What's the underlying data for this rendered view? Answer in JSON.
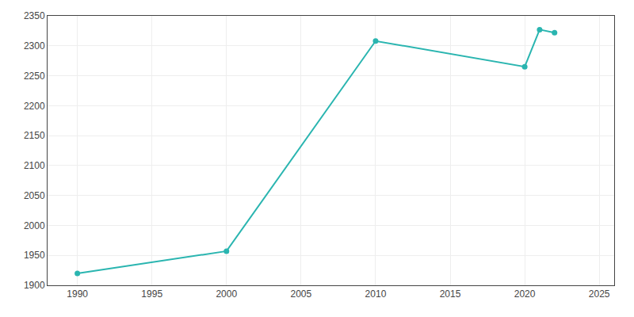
{
  "chart_data": {
    "type": "line",
    "x": [
      1990,
      2000,
      2010,
      2020,
      2021,
      2022
    ],
    "values": [
      1920,
      1957,
      2308,
      2265,
      2327,
      2322
    ],
    "color": "#2ab5b0",
    "marker": "circle",
    "xlim": [
      1988,
      2026
    ],
    "xticks": [
      1990,
      1995,
      2000,
      2005,
      2010,
      2015,
      2020,
      2025
    ],
    "ylim": [
      1900,
      2350
    ],
    "yticks": [
      1900,
      1950,
      2000,
      2050,
      2100,
      2150,
      2200,
      2250,
      2300,
      2350
    ],
    "grid": true
  }
}
